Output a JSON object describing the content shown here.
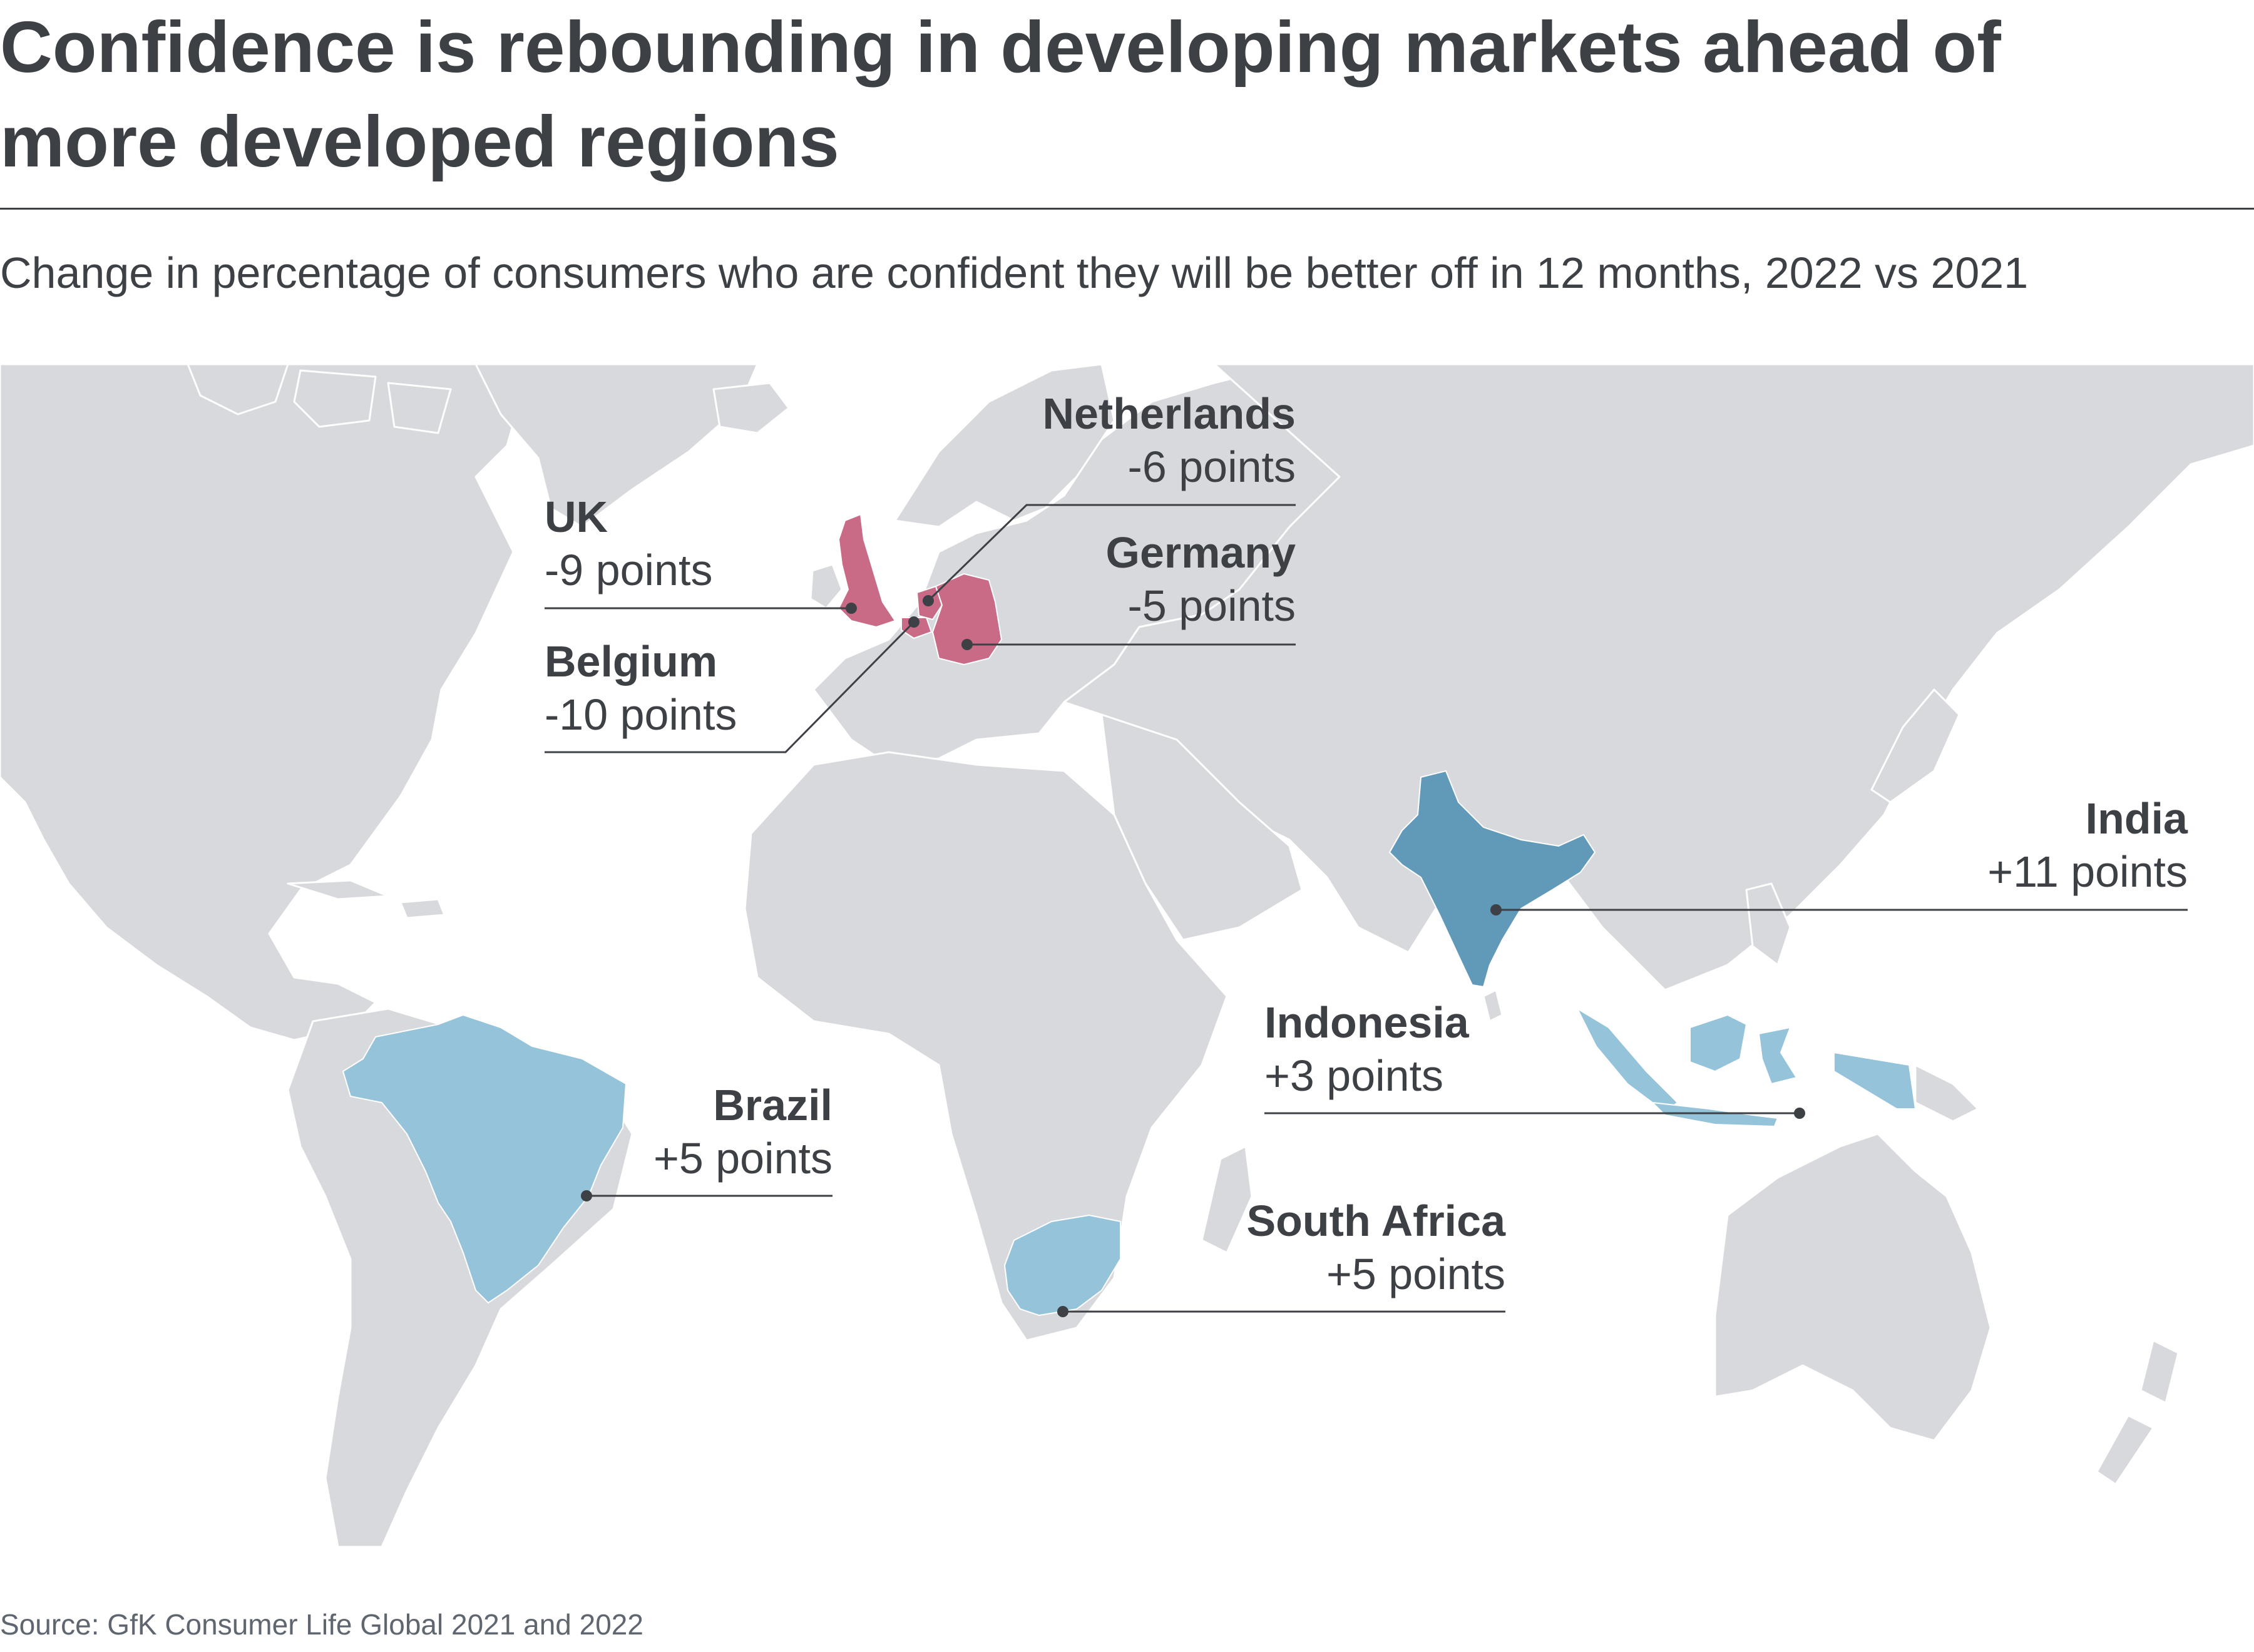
{
  "title": "Confidence is rebounding in developing markets ahead of more developed regions",
  "subtitle": "Change in percentage of consumers who are confident they will be better off in 12 months, 2022 vs 2021",
  "source": "Source: GfK Consumer Life Global 2021 and 2022",
  "colors": {
    "land": "#d7d9dc",
    "water": "#ffffff",
    "decline": "#c96b86",
    "rise_light": "#95c3da",
    "rise_strong": "#6199b8",
    "leader": "#3d4045"
  },
  "countries": [
    {
      "id": "uk",
      "name": "UK",
      "change_text": "-9 points",
      "change": -9
    },
    {
      "id": "netherlands",
      "name": "Netherlands",
      "change_text": "-6 points",
      "change": -6
    },
    {
      "id": "germany",
      "name": "Germany",
      "change_text": "-5 points",
      "change": -5
    },
    {
      "id": "belgium",
      "name": "Belgium",
      "change_text": "-10 points",
      "change": -10
    },
    {
      "id": "india",
      "name": "India",
      "change_text": "+11 points",
      "change": 11
    },
    {
      "id": "indonesia",
      "name": "Indonesia",
      "change_text": "+3 points",
      "change": 3
    },
    {
      "id": "brazil",
      "name": "Brazil",
      "change_text": "+5 points",
      "change": 5
    },
    {
      "id": "south-africa",
      "name": "South Africa",
      "change_text": "+5 points",
      "change": 5
    }
  ]
}
